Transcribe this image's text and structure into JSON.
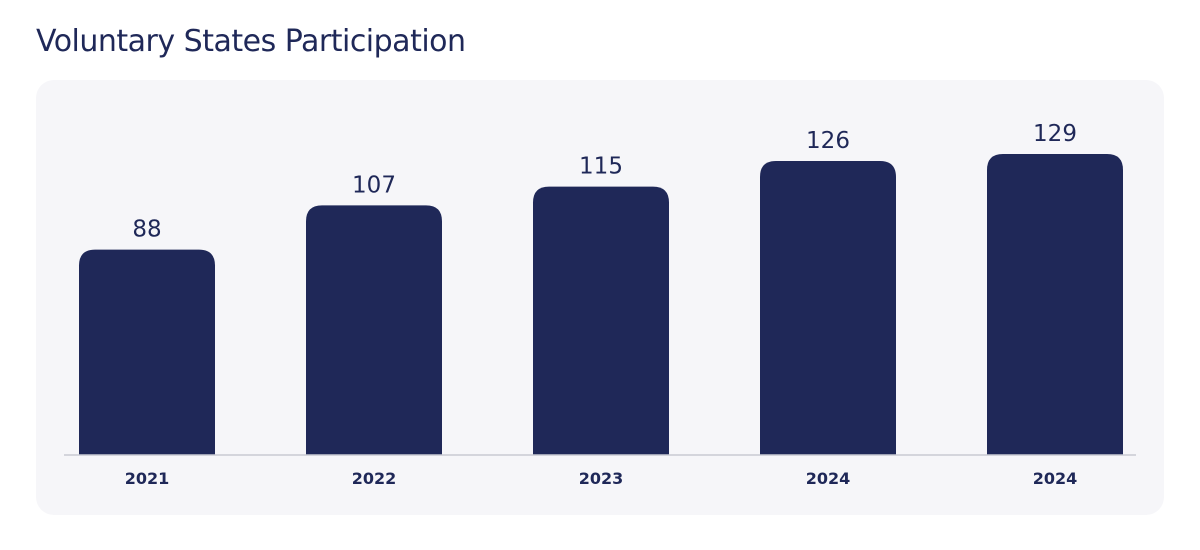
{
  "title": "Voluntary States Participation",
  "chart_data": {
    "type": "bar",
    "title": "Voluntary States Participation",
    "categories": [
      "2021",
      "2022",
      "2023",
      "2024",
      "2024"
    ],
    "values": [
      88,
      107,
      115,
      126,
      129
    ],
    "xlabel": "",
    "ylabel": "",
    "ylim": [
      0,
      129
    ],
    "grid": false,
    "data_labels": true,
    "colors": {
      "bar": "#1f2858",
      "card": "#f6f6f9",
      "text": "#1f2858"
    }
  }
}
